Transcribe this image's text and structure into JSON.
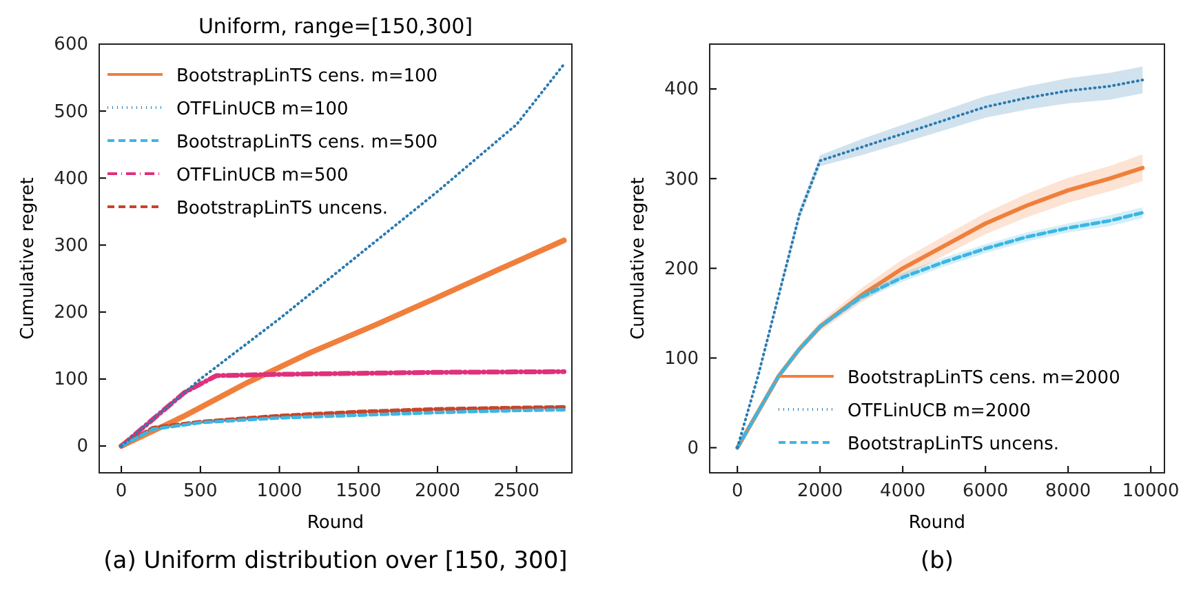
{
  "chart_data": [
    {
      "type": "line",
      "title": "Uniform, range=[150,300]",
      "xlabel": "Round",
      "ylabel": "Cumulative regret",
      "xlim": [
        -140,
        2850
      ],
      "ylim": [
        -40,
        600
      ],
      "xticks": [
        0,
        500,
        1000,
        1500,
        2000,
        2500
      ],
      "yticks": [
        0,
        100,
        200,
        300,
        400,
        500,
        600
      ],
      "legend": "top left",
      "grid": false,
      "annotations": [
        "(a) Uniform distribution over [150, 300]"
      ],
      "series": [
        {
          "name": "BootstrapLinTS cens. m=100",
          "color": "#f07f3c",
          "line_style": "solid",
          "x": [
            0,
            400,
            800,
            1200,
            1600,
            2000,
            2400,
            2800
          ],
          "values": [
            0,
            45,
            95,
            140,
            180,
            222,
            265,
            307
          ]
        },
        {
          "name": "OTFLinUCB m=100",
          "color": "#2a7ab0",
          "line_style": "dotted",
          "x": [
            0,
            500,
            1000,
            1500,
            2000,
            2500,
            2800
          ],
          "values": [
            0,
            100,
            190,
            285,
            380,
            480,
            570
          ]
        },
        {
          "name": "BootstrapLinTS cens. m=500",
          "color": "#3cb6e3",
          "line_style": "dashed",
          "x": [
            0,
            200,
            500,
            1000,
            1500,
            2000,
            2500,
            2800
          ],
          "values": [
            0,
            25,
            35,
            42,
            46,
            50,
            53,
            54
          ]
        },
        {
          "name": "OTFLinUCB m=500",
          "color": "#e0307a",
          "line_style": "dashdot",
          "x": [
            0,
            200,
            400,
            600,
            1000,
            2000,
            2800
          ],
          "values": [
            0,
            40,
            80,
            105,
            107,
            110,
            111
          ]
        },
        {
          "name": "BootstrapLinTS uncens.",
          "color": "#c8442a",
          "line_style": "dashed",
          "x": [
            0,
            200,
            500,
            1000,
            1500,
            2000,
            2500,
            2800
          ],
          "values": [
            0,
            27,
            36,
            45,
            51,
            55,
            57,
            58
          ]
        }
      ]
    },
    {
      "type": "line",
      "xlabel": "Round",
      "ylabel": "Cumulative regret",
      "xlim": [
        -670,
        10330
      ],
      "ylim": [
        -28,
        450
      ],
      "xticks": [
        0,
        2000,
        4000,
        6000,
        8000,
        10000
      ],
      "yticks": [
        0,
        100,
        200,
        300,
        400
      ],
      "legend": "bottom right",
      "grid": false,
      "annotations": [
        "(b)"
      ],
      "x": [
        0,
        500,
        1000,
        1500,
        2000,
        3000,
        4000,
        5000,
        6000,
        7000,
        8000,
        9000,
        9800
      ],
      "series": [
        {
          "name": "BootstrapLinTS cens. m=2000",
          "color": "#f07f3c",
          "line_style": "solid",
          "values": [
            0,
            40,
            80,
            110,
            135,
            170,
            200,
            225,
            250,
            270,
            287,
            300,
            312
          ],
          "lower": [
            0,
            38,
            77,
            106,
            130,
            162,
            190,
            214,
            238,
            257,
            273,
            286,
            297
          ],
          "upper": [
            0,
            42,
            83,
            114,
            140,
            178,
            210,
            236,
            262,
            283,
            301,
            314,
            327
          ]
        },
        {
          "name": "OTFLinUCB m=2000",
          "color": "#2a7ab0",
          "line_style": "dotted",
          "values": [
            0,
            80,
            170,
            260,
            320,
            335,
            350,
            365,
            380,
            390,
            398,
            403,
            410
          ],
          "lower": [
            0,
            77,
            165,
            254,
            314,
            326,
            340,
            354,
            368,
            377,
            384,
            388,
            395
          ],
          "upper": [
            0,
            83,
            175,
            266,
            326,
            344,
            360,
            376,
            392,
            403,
            412,
            418,
            425
          ]
        },
        {
          "name": "BootstrapLinTS uncens.",
          "color": "#3cb6e3",
          "line_style": "dashed",
          "values": [
            0,
            40,
            80,
            110,
            135,
            168,
            190,
            207,
            222,
            235,
            245,
            253,
            262
          ],
          "lower": [
            0,
            39,
            78,
            107,
            132,
            164,
            185,
            202,
            217,
            230,
            240,
            247,
            256
          ],
          "upper": [
            0,
            41,
            82,
            113,
            138,
            172,
            195,
            212,
            227,
            240,
            250,
            259,
            268
          ]
        }
      ]
    }
  ]
}
